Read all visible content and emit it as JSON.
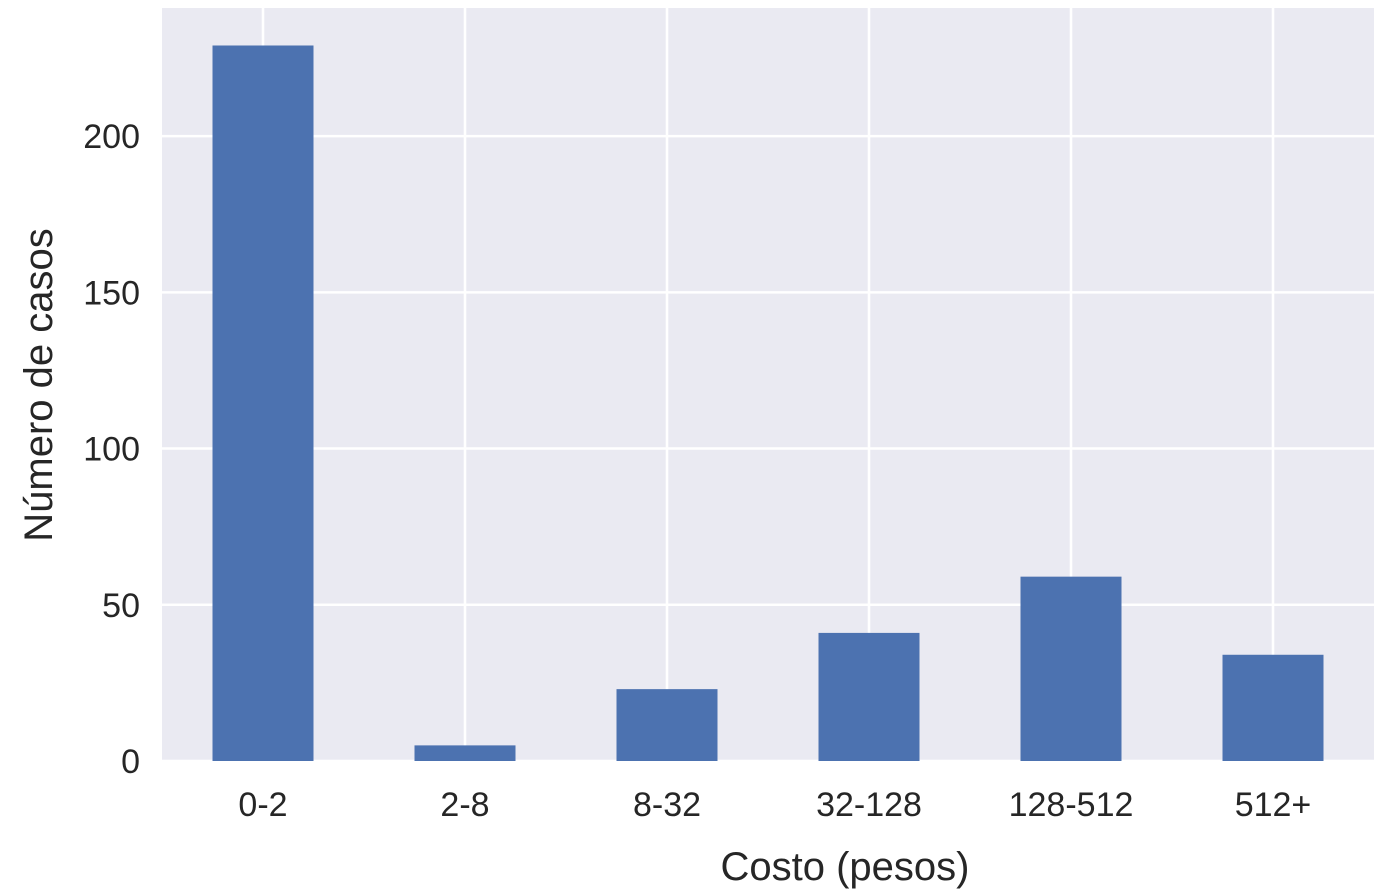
{
  "chart_data": {
    "type": "bar",
    "title": "",
    "xlabel": "Costo (pesos)",
    "ylabel": "Número de casos",
    "categories": [
      "0-2",
      "2-8",
      "8-32",
      "32-128",
      "128-512",
      "512+"
    ],
    "values": [
      229,
      5,
      23,
      41,
      59,
      34
    ],
    "ylim": [
      0,
      241
    ],
    "yticks": [
      0,
      50,
      100,
      150,
      200
    ],
    "yticks_labels": [
      "0",
      "50",
      "100",
      "150",
      "200"
    ],
    "grid": true,
    "legend": "none",
    "colors": {
      "bar": "#4c72b0",
      "plot_background": "#eaeaf2",
      "grid": "#ffffff",
      "text": "#262626"
    }
  }
}
